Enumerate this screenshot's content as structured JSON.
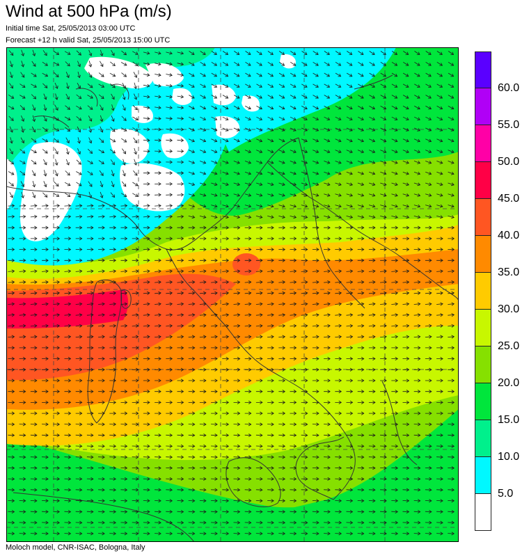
{
  "title": "Wind at 500 hPa (m/s)",
  "initial_time": "Initial time  Sat, 25/05/2013 03:00 UTC",
  "forecast": "Forecast +12 h valid  Sat, 25/05/2013 15:00 UTC",
  "footer": "Moloch model, CNR-ISAC, Bologna, Italy",
  "legend": {
    "labels": [
      "5.0",
      "10.0",
      "15.0",
      "20.0",
      "25.0",
      "30.0",
      "35.0",
      "40.0",
      "45.0",
      "50.0",
      "55.0",
      "60.0"
    ],
    "colors": [
      "#ffffff",
      "#00f8ff",
      "#00f08c",
      "#00e63c",
      "#86e000",
      "#c8f700",
      "#ffcb00",
      "#ff8a00",
      "#ff5622",
      "#ff0046",
      "#ff00a6",
      "#b000f6",
      "#5a00ff"
    ]
  },
  "colors": {
    "bg": "#86e000",
    "border": "#000000",
    "coast": "#333333",
    "grid": "#444444",
    "arrow": "#1a1a1a",
    "cloud_white": "#ffffff"
  }
}
